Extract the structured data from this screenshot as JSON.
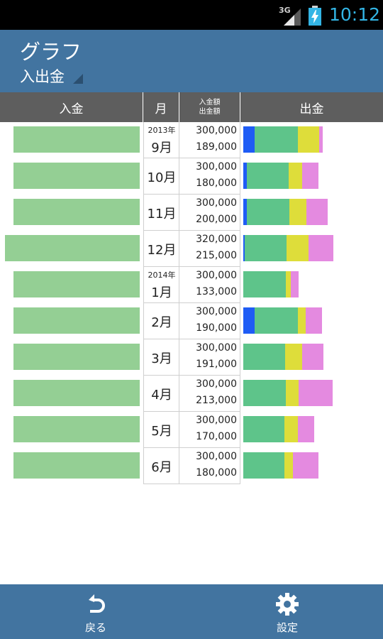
{
  "status_bar": {
    "network": "3G",
    "time": "10:12"
  },
  "header": {
    "title": "グラフ",
    "subtitle": "入出金"
  },
  "columns": {
    "income": "入金",
    "month": "月",
    "amount_income": "入金額",
    "amount_expense": "出金額",
    "expense": "出金"
  },
  "colors": {
    "header": "#4274a0",
    "income_bar": "#94cf94",
    "segments": [
      "#1f5cf5",
      "#5ec48a",
      "#dedd3a",
      "#e48ae0"
    ]
  },
  "rows": [
    {
      "year": "2013年",
      "month": "9月",
      "income": "300,000",
      "expense": "189,000",
      "income_value": 300000,
      "segments": [
        16,
        61,
        30,
        5
      ]
    },
    {
      "year": "",
      "month": "10月",
      "income": "300,000",
      "expense": "180,000",
      "income_value": 300000,
      "segments": [
        5,
        59,
        19,
        23
      ]
    },
    {
      "year": "",
      "month": "11月",
      "income": "300,000",
      "expense": "200,000",
      "income_value": 300000,
      "segments": [
        5,
        60,
        24,
        30
      ]
    },
    {
      "year": "",
      "month": "12月",
      "income": "320,000",
      "expense": "215,000",
      "income_value": 320000,
      "segments": [
        2,
        59,
        31,
        35
      ]
    },
    {
      "year": "2014年",
      "month": "1月",
      "income": "300,000",
      "expense": "133,000",
      "income_value": 300000,
      "segments": [
        0,
        60,
        7,
        11
      ]
    },
    {
      "year": "",
      "month": "2月",
      "income": "300,000",
      "expense": "190,000",
      "income_value": 300000,
      "segments": [
        16,
        61,
        11,
        23
      ]
    },
    {
      "year": "",
      "month": "3月",
      "income": "300,000",
      "expense": "191,000",
      "income_value": 300000,
      "segments": [
        0,
        59,
        24,
        30
      ]
    },
    {
      "year": "",
      "month": "4月",
      "income": "300,000",
      "expense": "213,000",
      "income_value": 300000,
      "segments": [
        0,
        60,
        18,
        48
      ]
    },
    {
      "year": "",
      "month": "5月",
      "income": "300,000",
      "expense": "170,000",
      "income_value": 300000,
      "segments": [
        0,
        58,
        19,
        23
      ]
    },
    {
      "year": "",
      "month": "6月",
      "income": "300,000",
      "expense": "180,000",
      "income_value": 300000,
      "segments": [
        0,
        58,
        12,
        36
      ]
    }
  ],
  "footer": {
    "back": "戻る",
    "settings": "設定"
  }
}
